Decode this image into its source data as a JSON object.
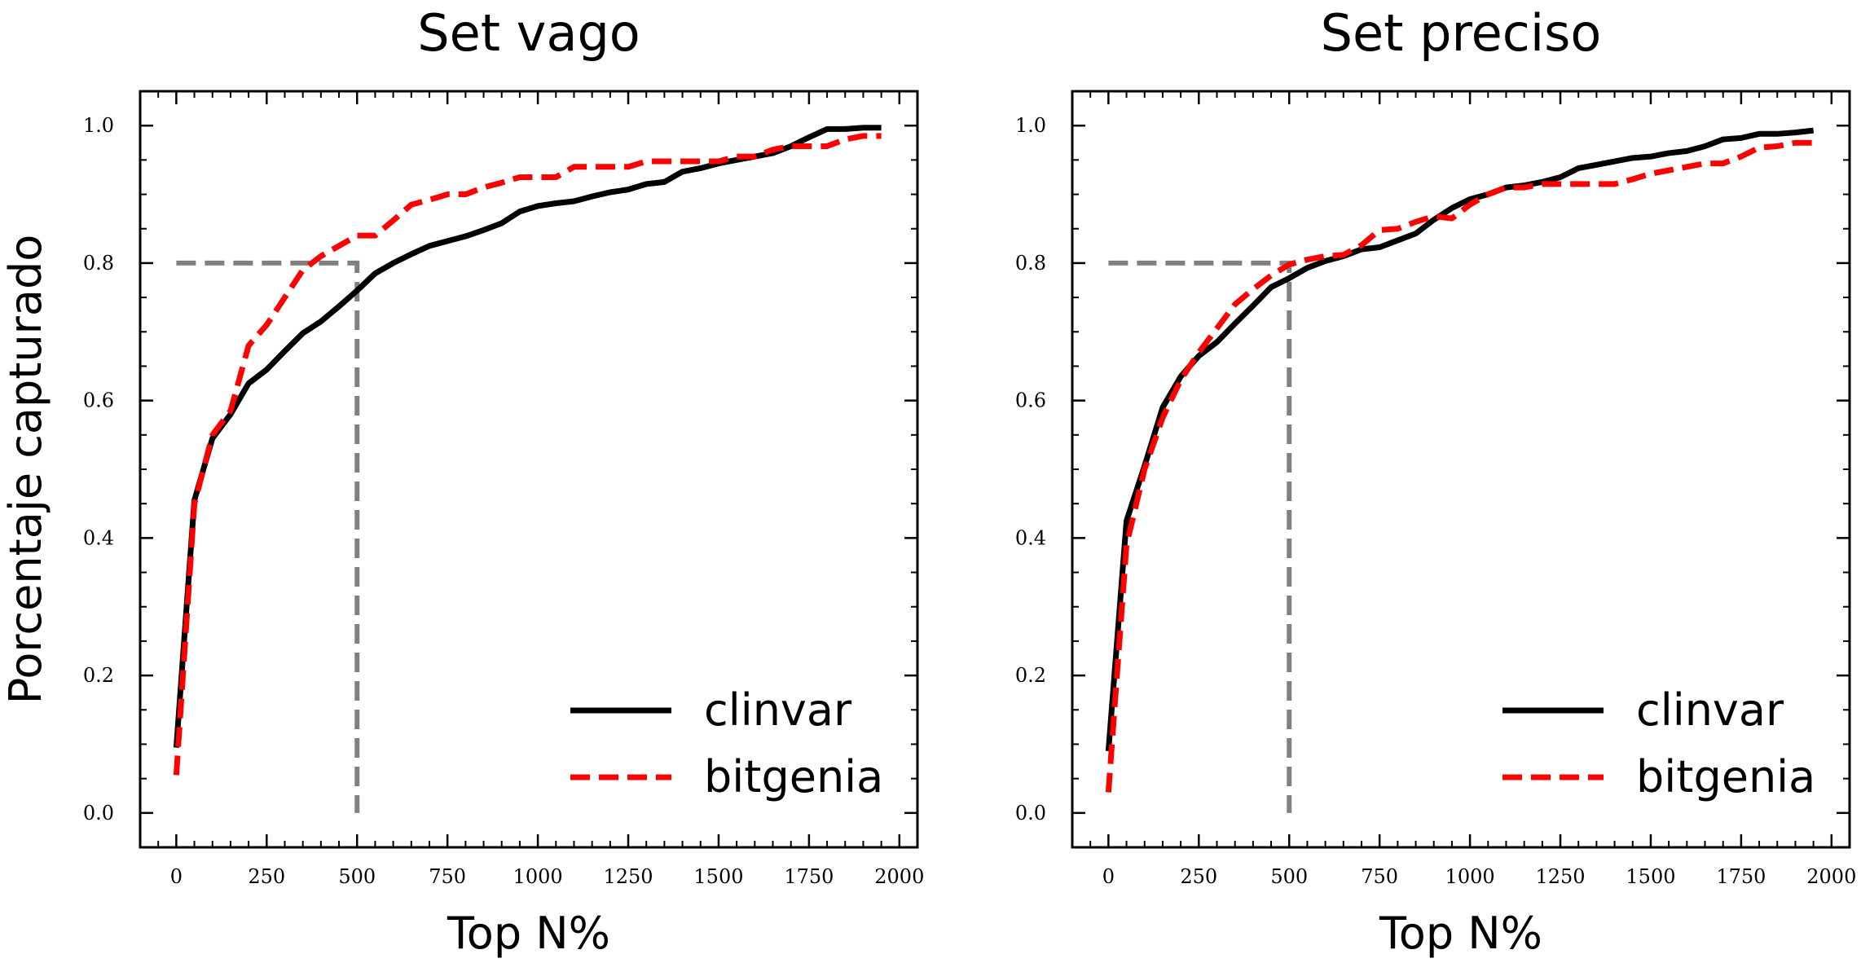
{
  "chart_data": [
    {
      "type": "line",
      "title": "Set vago",
      "xlabel": "Top N%",
      "ylabel": "Porcentaje capturado",
      "xlim": [
        -100,
        2050
      ],
      "ylim": [
        -0.05,
        1.05
      ],
      "xticks": [
        0,
        250,
        500,
        750,
        1000,
        1250,
        1500,
        1750,
        2000
      ],
      "xtick_labels": [
        "0",
        "250",
        "500",
        "750",
        "1000",
        "1250",
        "1500",
        "1750",
        "2000"
      ],
      "yticks": [
        0.0,
        0.2,
        0.4,
        0.6,
        0.8,
        1.0
      ],
      "ytick_labels": [
        "0.0",
        "0.2",
        "0.4",
        "0.6",
        "0.8",
        "1.0"
      ],
      "legend_position": "lower-right",
      "grid": false,
      "series": [
        {
          "name": "clinvar",
          "color": "#000000",
          "style": "solid",
          "x": [
            0,
            50,
            100,
            150,
            200,
            250,
            300,
            350,
            400,
            450,
            500,
            550,
            600,
            650,
            700,
            750,
            800,
            850,
            900,
            950,
            1000,
            1050,
            1100,
            1150,
            1200,
            1250,
            1300,
            1350,
            1400,
            1450,
            1500,
            1550,
            1600,
            1650,
            1700,
            1750,
            1800,
            1850,
            1900,
            1950
          ],
          "y": [
            0.095,
            0.455,
            0.545,
            0.58,
            0.625,
            0.645,
            0.672,
            0.698,
            0.715,
            0.737,
            0.76,
            0.785,
            0.8,
            0.813,
            0.825,
            0.832,
            0.839,
            0.848,
            0.858,
            0.875,
            0.883,
            0.887,
            0.89,
            0.897,
            0.903,
            0.907,
            0.915,
            0.918,
            0.933,
            0.938,
            0.945,
            0.95,
            0.955,
            0.96,
            0.97,
            0.983,
            0.995,
            0.995,
            0.997,
            0.997
          ]
        },
        {
          "name": "bitgenia",
          "color": "#ff0000",
          "style": "dashed",
          "x": [
            0,
            50,
            100,
            150,
            200,
            250,
            300,
            350,
            400,
            450,
            500,
            550,
            600,
            650,
            700,
            750,
            800,
            850,
            900,
            950,
            1000,
            1050,
            1100,
            1150,
            1200,
            1250,
            1300,
            1350,
            1400,
            1450,
            1500,
            1550,
            1600,
            1650,
            1700,
            1750,
            1800,
            1850,
            1900,
            1950
          ],
          "y": [
            0.055,
            0.45,
            0.55,
            0.585,
            0.68,
            0.71,
            0.75,
            0.79,
            0.81,
            0.825,
            0.84,
            0.84,
            0.862,
            0.885,
            0.892,
            0.9,
            0.9,
            0.91,
            0.917,
            0.925,
            0.925,
            0.925,
            0.94,
            0.94,
            0.94,
            0.94,
            0.948,
            0.948,
            0.948,
            0.948,
            0.948,
            0.955,
            0.955,
            0.965,
            0.97,
            0.97,
            0.97,
            0.98,
            0.985,
            0.985
          ]
        }
      ],
      "reference_lines": [
        {
          "color": "#808080",
          "style": "dashed",
          "x": [
            0,
            500,
            500
          ],
          "y": [
            0.8,
            0.8,
            0.0
          ]
        }
      ]
    },
    {
      "type": "line",
      "title": "Set preciso",
      "xlabel": "Top N%",
      "ylabel": "",
      "xlim": [
        -100,
        2050
      ],
      "ylim": [
        -0.05,
        1.05
      ],
      "xticks": [
        0,
        250,
        500,
        750,
        1000,
        1250,
        1500,
        1750,
        2000
      ],
      "xtick_labels": [
        "0",
        "250",
        "500",
        "750",
        "1000",
        "1250",
        "1500",
        "1750",
        "2000"
      ],
      "yticks": [
        0.0,
        0.2,
        0.4,
        0.6,
        0.8,
        1.0
      ],
      "ytick_labels": [
        "0.0",
        "0.2",
        "0.4",
        "0.6",
        "0.8",
        "1.0"
      ],
      "legend_position": "lower-right",
      "grid": false,
      "series": [
        {
          "name": "clinvar",
          "color": "#000000",
          "style": "solid",
          "x": [
            0,
            50,
            100,
            150,
            200,
            250,
            300,
            350,
            400,
            450,
            500,
            550,
            600,
            650,
            700,
            750,
            800,
            850,
            900,
            950,
            1000,
            1050,
            1100,
            1150,
            1200,
            1250,
            1300,
            1350,
            1400,
            1450,
            1500,
            1550,
            1600,
            1650,
            1700,
            1750,
            1800,
            1850,
            1900,
            1950
          ],
          "y": [
            0.09,
            0.425,
            0.505,
            0.59,
            0.635,
            0.665,
            0.685,
            0.712,
            0.738,
            0.765,
            0.778,
            0.793,
            0.803,
            0.81,
            0.82,
            0.823,
            0.833,
            0.843,
            0.863,
            0.88,
            0.893,
            0.9,
            0.91,
            0.913,
            0.918,
            0.925,
            0.938,
            0.943,
            0.948,
            0.953,
            0.955,
            0.96,
            0.963,
            0.97,
            0.98,
            0.982,
            0.988,
            0.988,
            0.99,
            0.993
          ]
        },
        {
          "name": "bitgenia",
          "color": "#ff0000",
          "style": "dashed",
          "x": [
            0,
            50,
            100,
            150,
            200,
            250,
            300,
            350,
            400,
            450,
            500,
            550,
            600,
            650,
            700,
            750,
            800,
            850,
            900,
            950,
            1000,
            1050,
            1100,
            1150,
            1200,
            1250,
            1300,
            1350,
            1400,
            1450,
            1500,
            1550,
            1600,
            1650,
            1700,
            1750,
            1800,
            1850,
            1900,
            1950
          ],
          "y": [
            0.03,
            0.39,
            0.5,
            0.575,
            0.63,
            0.67,
            0.705,
            0.74,
            0.762,
            0.782,
            0.798,
            0.805,
            0.81,
            0.812,
            0.826,
            0.848,
            0.85,
            0.86,
            0.868,
            0.865,
            0.885,
            0.9,
            0.91,
            0.91,
            0.915,
            0.915,
            0.915,
            0.915,
            0.915,
            0.922,
            0.93,
            0.935,
            0.94,
            0.945,
            0.945,
            0.955,
            0.968,
            0.97,
            0.975,
            0.975
          ]
        }
      ],
      "reference_lines": [
        {
          "color": "#808080",
          "style": "dashed",
          "x": [
            0,
            500,
            500
          ],
          "y": [
            0.8,
            0.8,
            0.0
          ]
        }
      ]
    }
  ]
}
